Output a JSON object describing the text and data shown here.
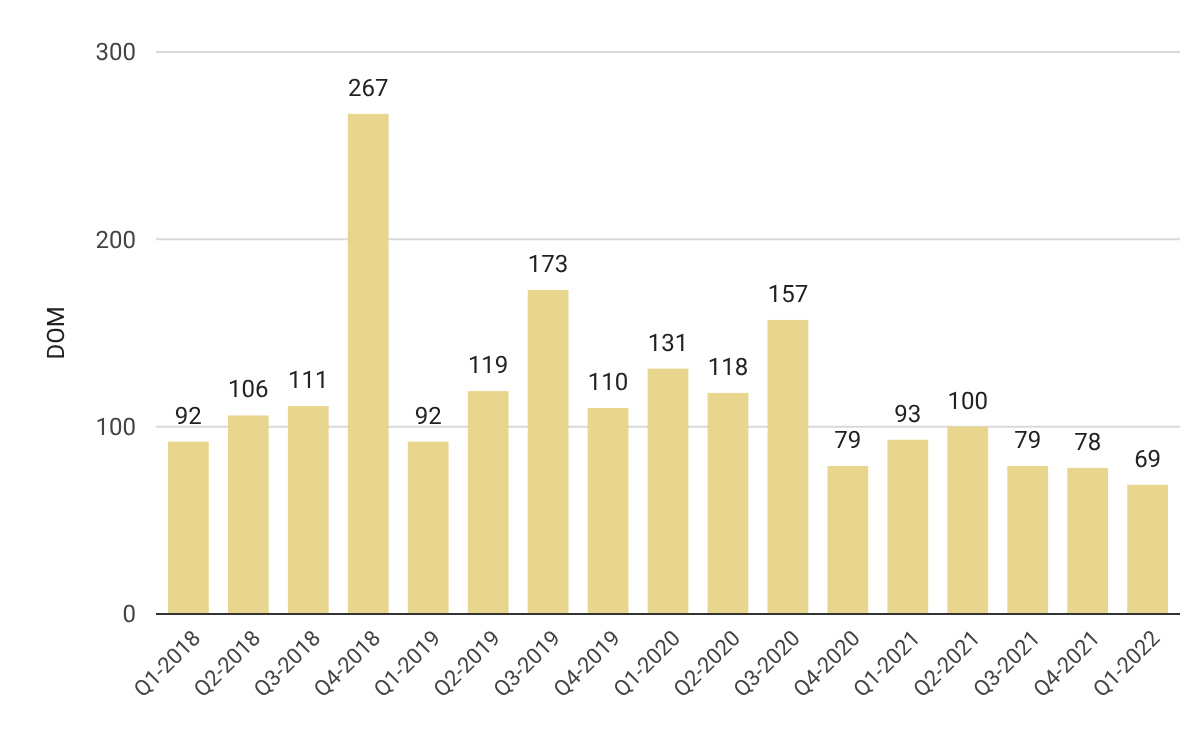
{
  "chart_data": {
    "type": "bar",
    "ylabel": "DOM",
    "categories": [
      "Q1-2018",
      "Q2-2018",
      "Q3-2018",
      "Q4-2018",
      "Q1-2019",
      "Q2-2019",
      "Q3-2019",
      "Q4-2019",
      "Q1-2020",
      "Q2-2020",
      "Q3-2020",
      "Q4-2020",
      "Q1-2021",
      "Q2-2021",
      "Q3-2021",
      "Q4-2021",
      "Q1-2022"
    ],
    "values": [
      92,
      106,
      111,
      267,
      92,
      119,
      173,
      110,
      131,
      118,
      157,
      79,
      93,
      100,
      79,
      78,
      69
    ],
    "color": "#e8d68e",
    "ylim": [
      0,
      300
    ],
    "yticks": [
      0,
      100,
      200,
      300
    ],
    "grid": "y",
    "data_labels": true
  }
}
